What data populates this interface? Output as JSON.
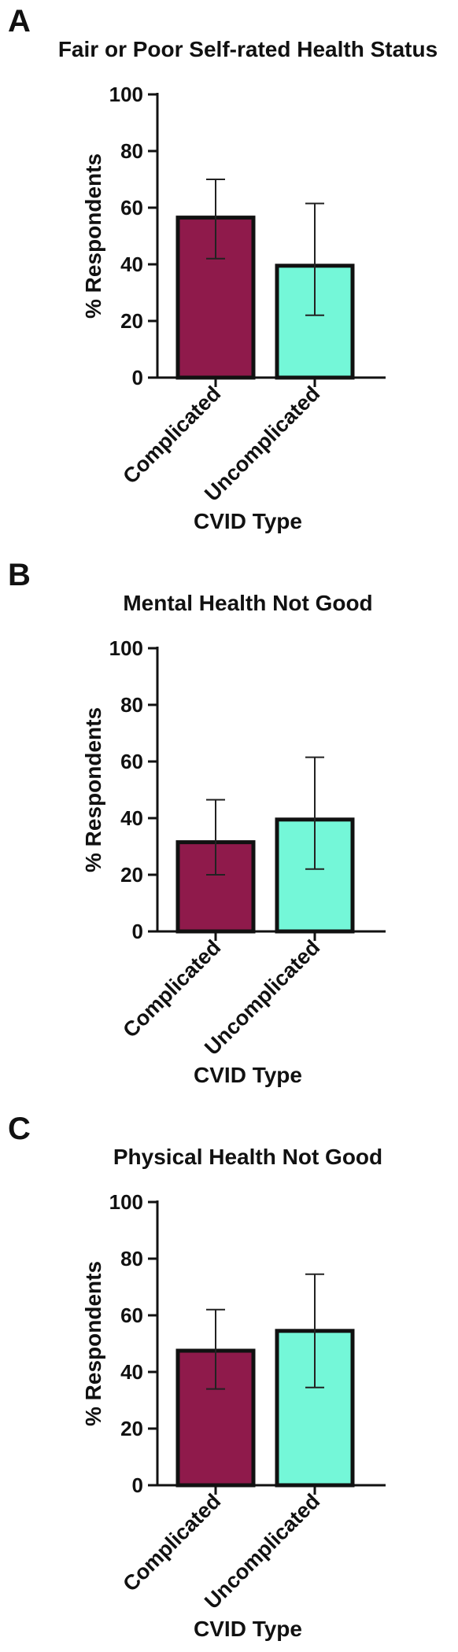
{
  "chart_data": [
    {
      "panel": "A",
      "type": "bar",
      "title": "Fair or Poor Self-rated Health Status",
      "xlabel": "CVID Type",
      "ylabel": "% Respondents",
      "ylim": [
        0,
        100
      ],
      "yticks": [
        "0",
        "20",
        "40",
        "60",
        "80",
        "100"
      ],
      "categories": [
        "Complicated",
        "Uncomplicated"
      ],
      "values": [
        56.5,
        39.5
      ],
      "error_low": [
        42,
        22
      ],
      "error_high": [
        70,
        61.5
      ],
      "colors": [
        "#8f1a4b",
        "#74f7d8"
      ],
      "grid": false,
      "legend": "none"
    },
    {
      "panel": "B",
      "type": "bar",
      "title": "Mental Health Not Good",
      "xlabel": "CVID Type",
      "ylabel": "% Respondents",
      "ylim": [
        0,
        100
      ],
      "yticks": [
        "0",
        "20",
        "40",
        "60",
        "80",
        "100"
      ],
      "categories": [
        "Complicated",
        "Uncomplicated"
      ],
      "values": [
        31.5,
        39.5
      ],
      "error_low": [
        20,
        22
      ],
      "error_high": [
        46.5,
        61.5
      ],
      "colors": [
        "#8f1a4b",
        "#74f7d8"
      ],
      "grid": false,
      "legend": "none"
    },
    {
      "panel": "C",
      "type": "bar",
      "title": "Physical Health Not Good",
      "xlabel": "CVID Type",
      "ylabel": "% Respondents",
      "ylim": [
        0,
        100
      ],
      "yticks": [
        "0",
        "20",
        "40",
        "60",
        "80",
        "100"
      ],
      "categories": [
        "Complicated",
        "Uncomplicated"
      ],
      "values": [
        47.5,
        54.5
      ],
      "error_low": [
        34,
        34.5
      ],
      "error_high": [
        62,
        74.5
      ],
      "colors": [
        "#8f1a4b",
        "#74f7d8"
      ],
      "grid": false,
      "legend": "none"
    }
  ]
}
